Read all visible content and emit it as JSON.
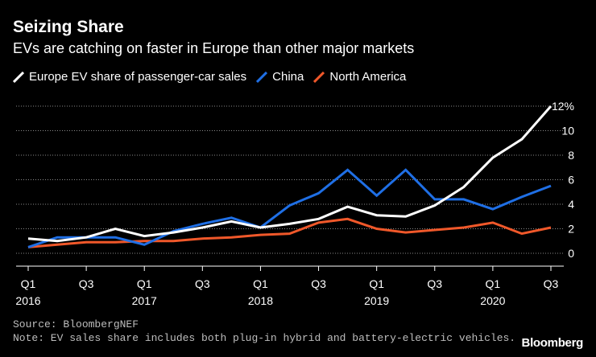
{
  "header": {
    "title": "Seizing Share",
    "subtitle": "EVs are catching on faster in Europe than other major markets"
  },
  "footer": {
    "source": "Source: BloombergNEF",
    "note": "Note: EV sales share includes both plug-in hybrid and battery-electric vehicles.",
    "brand": "Bloomberg"
  },
  "chart_data": {
    "type": "line",
    "title": "Seizing Share",
    "subtitle": "EVs are catching on faster in Europe than other major markets",
    "xlabel": "",
    "ylabel": "",
    "ylim": [
      0,
      12
    ],
    "y_unit_label": "12%",
    "y_ticks": [
      "0",
      "2",
      "4",
      "6",
      "8",
      "10",
      "12%"
    ],
    "y_tick_values": [
      0,
      2,
      4,
      6,
      8,
      10,
      12
    ],
    "legend_position": "top",
    "grid": "horizontal dotted",
    "x": [
      "Q1 2016",
      "Q2 2016",
      "Q3 2016",
      "Q4 2016",
      "Q1 2017",
      "Q2 2017",
      "Q3 2017",
      "Q4 2017",
      "Q1 2018",
      "Q2 2018",
      "Q3 2018",
      "Q4 2018",
      "Q1 2019",
      "Q2 2019",
      "Q3 2019",
      "Q4 2019",
      "Q1 2020",
      "Q2 2020",
      "Q3 2020"
    ],
    "x_tick_labels": [
      {
        "index": 0,
        "line1": "Q1",
        "line2": "2016"
      },
      {
        "index": 2,
        "line1": "Q3",
        "line2": ""
      },
      {
        "index": 4,
        "line1": "Q1",
        "line2": "2017"
      },
      {
        "index": 6,
        "line1": "Q3",
        "line2": ""
      },
      {
        "index": 8,
        "line1": "Q1",
        "line2": "2018"
      },
      {
        "index": 10,
        "line1": "Q3",
        "line2": ""
      },
      {
        "index": 12,
        "line1": "Q1",
        "line2": "2019"
      },
      {
        "index": 14,
        "line1": "Q3",
        "line2": ""
      },
      {
        "index": 16,
        "line1": "Q1",
        "line2": "2020"
      },
      {
        "index": 18,
        "line1": "Q3",
        "line2": ""
      }
    ],
    "series": [
      {
        "name": "Europe EV share of passenger-car sales",
        "color": "#ffffff",
        "values": [
          1.2,
          1.0,
          1.3,
          2.0,
          1.4,
          1.7,
          2.1,
          2.6,
          2.1,
          2.4,
          2.8,
          3.8,
          3.1,
          3.0,
          3.9,
          5.4,
          7.8,
          9.3,
          12.0
        ]
      },
      {
        "name": "China",
        "color": "#1f6fe5",
        "values": [
          0.5,
          1.3,
          1.3,
          1.3,
          0.7,
          1.8,
          2.4,
          2.9,
          2.1,
          3.9,
          4.9,
          6.8,
          4.7,
          6.8,
          4.4,
          4.4,
          3.6,
          4.6,
          5.5
        ]
      },
      {
        "name": "North America",
        "color": "#f0582a",
        "values": [
          0.5,
          0.7,
          0.9,
          0.9,
          1.0,
          1.0,
          1.2,
          1.3,
          1.5,
          1.6,
          2.5,
          2.8,
          2.0,
          1.7,
          1.9,
          2.1,
          2.5,
          1.6,
          2.1
        ]
      }
    ]
  }
}
